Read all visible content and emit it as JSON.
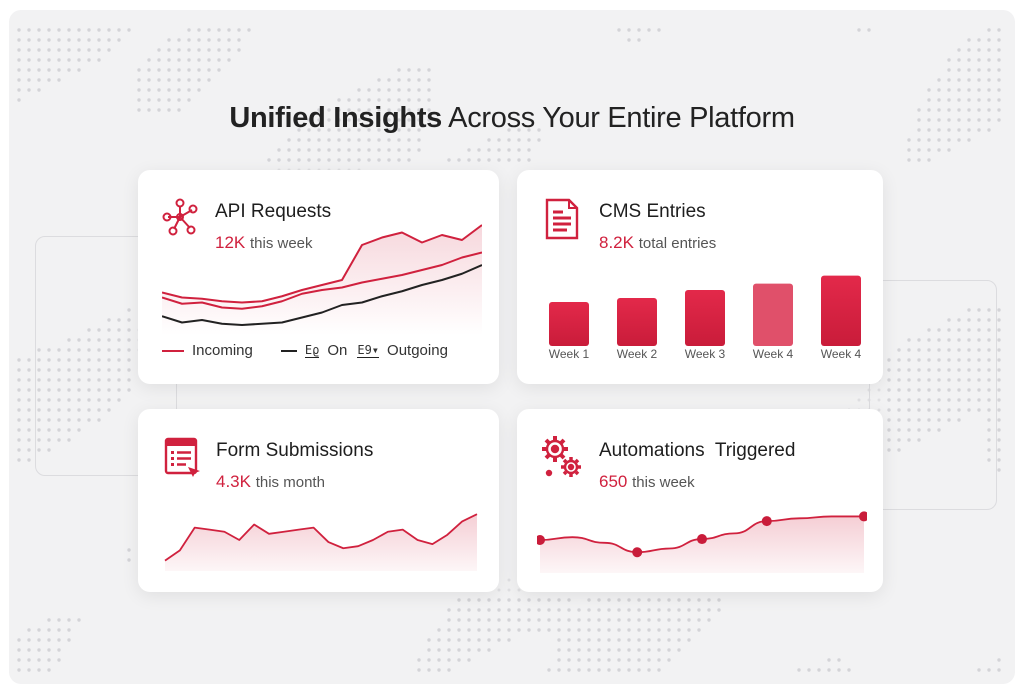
{
  "headline": {
    "bold": "Unified Insights",
    "rest": " Across Your Entire Platform"
  },
  "cards": {
    "api": {
      "title": "API Requests",
      "value": "12K",
      "unit": "this week",
      "legend": {
        "incoming": "Incoming",
        "on": "On",
        "outgoing": "Outgoing"
      },
      "icon": "network-nodes-icon"
    },
    "cms": {
      "title": "CMS Entries",
      "value": "8.2K",
      "unit": "total entries",
      "icon": "document-icon"
    },
    "forms": {
      "title": "Form Submissions",
      "value": "4.3K",
      "unit": "this month",
      "icon": "form-list-icon"
    },
    "automations": {
      "title": "Automations  Triggered",
      "value": "650",
      "unit": "this week",
      "icon": "gears-icon"
    }
  },
  "colors": {
    "accent": "#d0213e",
    "dark": "#222222"
  },
  "chart_data": [
    {
      "type": "line",
      "title": "API Requests",
      "series": [
        {
          "name": "Incoming",
          "values": [
            30,
            25,
            26,
            22,
            21,
            23,
            27,
            33,
            36,
            38,
            42,
            45,
            48,
            52,
            56,
            62,
            66
          ]
        },
        {
          "name": "Outgoing",
          "values": [
            15,
            10,
            12,
            9,
            8,
            9,
            10,
            14,
            18,
            24,
            26,
            31,
            35,
            40,
            44,
            49,
            56
          ]
        },
        {
          "values": [
            34,
            30,
            29,
            27,
            26,
            27,
            31,
            36,
            40,
            44,
            72,
            78,
            82,
            74,
            80,
            76,
            88
          ]
        }
      ]
    },
    {
      "type": "bar",
      "title": "CMS Entries",
      "categories": [
        "Week 1",
        "Week 2",
        "Week 3",
        "Week 4",
        "Week 4"
      ],
      "values": [
        55,
        60,
        70,
        78,
        88
      ],
      "ylim": [
        0,
        100
      ]
    },
    {
      "type": "area",
      "title": "Form Submissions",
      "values": [
        10,
        20,
        42,
        40,
        38,
        30,
        45,
        36,
        38,
        40,
        42,
        28,
        22,
        24,
        30,
        38,
        40,
        30,
        26,
        35,
        48,
        55
      ],
      "ylim": [
        0,
        60
      ]
    },
    {
      "type": "area",
      "title": "Automations Triggered",
      "values": [
        35,
        38,
        32,
        22,
        26,
        36,
        42,
        55,
        58,
        60,
        60
      ],
      "markers": [
        0,
        3,
        5,
        7,
        10
      ],
      "ylim": [
        0,
        70
      ]
    }
  ]
}
